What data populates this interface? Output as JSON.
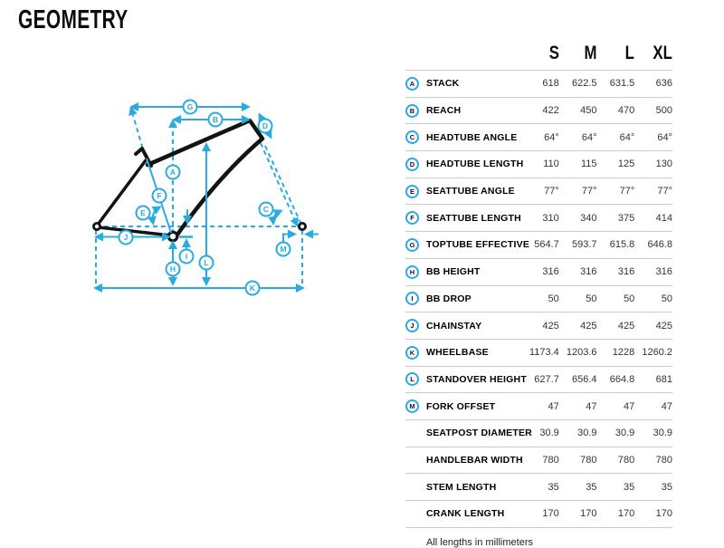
{
  "page": {
    "title": "GEOMETRY",
    "footnote": "All lengths in millimeters"
  },
  "colors": {
    "accent": "#29ABE2",
    "frame": "#131313",
    "divider": "#cccccc",
    "value_text": "#333333"
  },
  "diagram": {
    "labels": {
      "A": "A",
      "B": "B",
      "C": "C",
      "D": "D",
      "E": "E",
      "F": "F",
      "G": "G",
      "H": "H",
      "I": "I",
      "J": "J",
      "K": "K",
      "L": "L",
      "M": "M"
    }
  },
  "table": {
    "sizes": [
      "S",
      "M",
      "L",
      "XL"
    ],
    "rows": [
      {
        "letter": "A",
        "label": "STACK",
        "values": [
          "618",
          "622.5",
          "631.5",
          "636"
        ]
      },
      {
        "letter": "B",
        "label": "REACH",
        "values": [
          "422",
          "450",
          "470",
          "500"
        ]
      },
      {
        "letter": "C",
        "label": "HEADTUBE ANGLE",
        "values": [
          "64°",
          "64°",
          "64°",
          "64°"
        ]
      },
      {
        "letter": "D",
        "label": "HEADTUBE LENGTH",
        "values": [
          "110",
          "115",
          "125",
          "130"
        ]
      },
      {
        "letter": "E",
        "label": "SEATTUBE ANGLE",
        "values": [
          "77°",
          "77°",
          "77°",
          "77°"
        ]
      },
      {
        "letter": "F",
        "label": "SEATTUBE LENGTH",
        "values": [
          "310",
          "340",
          "375",
          "414"
        ]
      },
      {
        "letter": "G",
        "label": "TOPTUBE EFFECTIVE",
        "values": [
          "564.7",
          "593.7",
          "615.8",
          "646.8"
        ]
      },
      {
        "letter": "H",
        "label": "BB HEIGHT",
        "values": [
          "316",
          "316",
          "316",
          "316"
        ]
      },
      {
        "letter": "I",
        "label": "BB DROP",
        "values": [
          "50",
          "50",
          "50",
          "50"
        ]
      },
      {
        "letter": "J",
        "label": "CHAINSTAY",
        "values": [
          "425",
          "425",
          "425",
          "425"
        ]
      },
      {
        "letter": "K",
        "label": "WHEELBASE",
        "values": [
          "1173.4",
          "1203.6",
          "1228",
          "1260.2"
        ]
      },
      {
        "letter": "L",
        "label": "STANDOVER HEIGHT",
        "values": [
          "627.7",
          "656.4",
          "664.8",
          "681"
        ]
      },
      {
        "letter": "M",
        "label": "FORK OFFSET",
        "values": [
          "47",
          "47",
          "47",
          "47"
        ]
      },
      {
        "letter": "",
        "label": "SEATPOST DIAMETER",
        "values": [
          "30.9",
          "30.9",
          "30.9",
          "30.9"
        ]
      },
      {
        "letter": "",
        "label": "HANDLEBAR WIDTH",
        "values": [
          "780",
          "780",
          "780",
          "780"
        ]
      },
      {
        "letter": "",
        "label": "STEM LENGTH",
        "values": [
          "35",
          "35",
          "35",
          "35"
        ]
      },
      {
        "letter": "",
        "label": "CRANK LENGTH",
        "values": [
          "170",
          "170",
          "170",
          "170"
        ]
      }
    ]
  }
}
